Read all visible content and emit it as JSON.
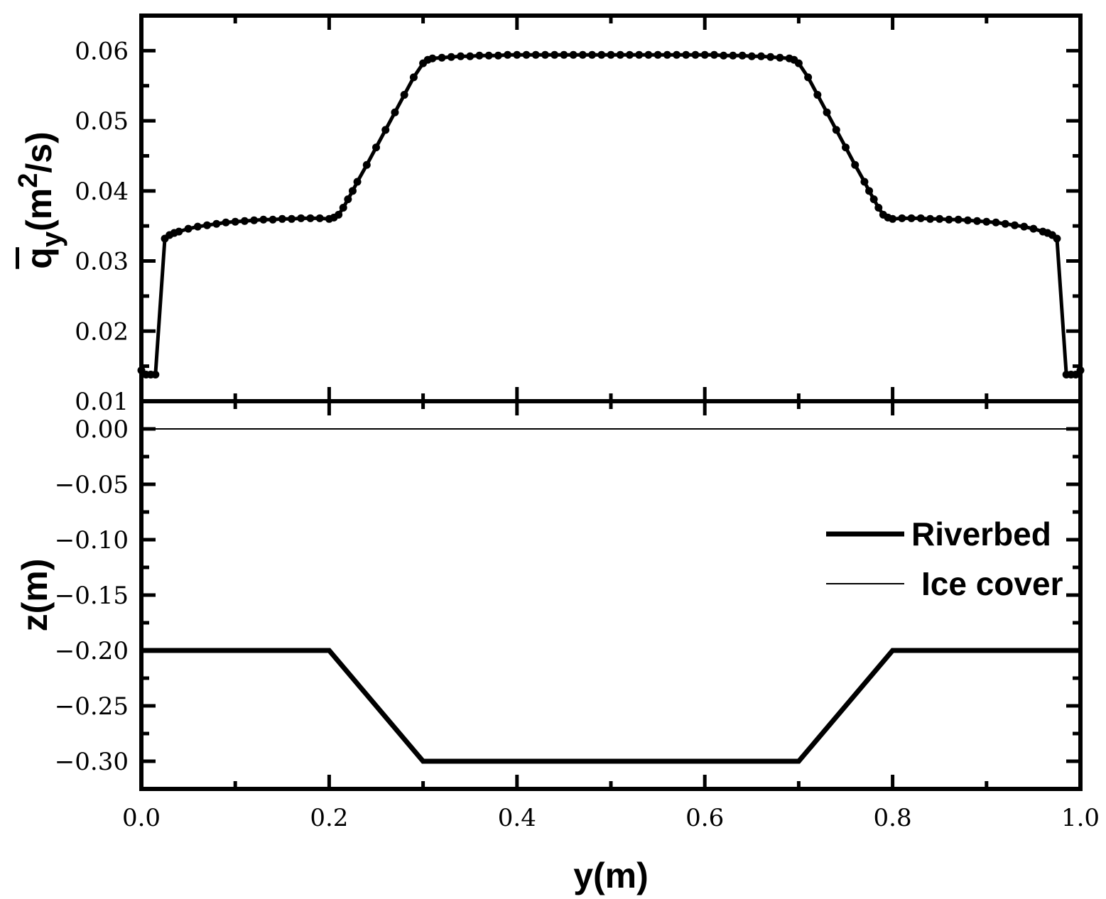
{
  "chart_data": [
    {
      "type": "line",
      "panel": "top",
      "ylabel": "q̄y(m²/s)",
      "ylabel_parts": {
        "base": "q",
        "subscript": "y",
        "unit_open": "(m",
        "superscript": "2",
        "unit_close": "/s)"
      },
      "ylim": [
        0.01,
        0.065
      ],
      "yticks": [
        0.01,
        0.02,
        0.03,
        0.04,
        0.05,
        0.06
      ],
      "ytick_labels": [
        "0.01",
        "0.02",
        "0.03",
        "0.04",
        "0.05",
        "0.06"
      ],
      "xlim": [
        0.0,
        1.0
      ],
      "markers": true,
      "series": [
        {
          "name": "",
          "x": [
            0.0,
            0.005,
            0.01,
            0.015,
            0.025,
            0.03,
            0.035,
            0.04,
            0.05,
            0.06,
            0.07,
            0.08,
            0.09,
            0.1,
            0.11,
            0.12,
            0.13,
            0.14,
            0.15,
            0.16,
            0.17,
            0.18,
            0.19,
            0.2,
            0.205,
            0.21,
            0.215,
            0.22,
            0.225,
            0.23,
            0.24,
            0.25,
            0.26,
            0.27,
            0.28,
            0.29,
            0.3,
            0.305,
            0.31,
            0.32,
            0.33,
            0.34,
            0.35,
            0.36,
            0.37,
            0.38,
            0.39,
            0.4,
            0.41,
            0.42,
            0.43,
            0.44,
            0.45,
            0.46,
            0.47,
            0.48,
            0.49,
            0.5,
            0.51,
            0.52,
            0.53,
            0.54,
            0.55,
            0.56,
            0.57,
            0.58,
            0.59,
            0.6,
            0.61,
            0.62,
            0.63,
            0.64,
            0.65,
            0.66,
            0.67,
            0.68,
            0.69,
            0.695,
            0.7,
            0.71,
            0.72,
            0.73,
            0.74,
            0.75,
            0.76,
            0.77,
            0.775,
            0.78,
            0.785,
            0.79,
            0.795,
            0.8,
            0.81,
            0.82,
            0.83,
            0.84,
            0.85,
            0.86,
            0.87,
            0.88,
            0.89,
            0.9,
            0.91,
            0.92,
            0.93,
            0.94,
            0.95,
            0.96,
            0.965,
            0.97,
            0.975,
            0.985,
            0.99,
            0.995,
            1.0
          ],
          "values": [
            0.0144,
            0.0138,
            0.0138,
            0.0138,
            0.0332,
            0.0337,
            0.034,
            0.0342,
            0.0346,
            0.0349,
            0.0351,
            0.0353,
            0.0355,
            0.0356,
            0.0357,
            0.0358,
            0.0359,
            0.0359,
            0.036,
            0.036,
            0.0361,
            0.0361,
            0.0361,
            0.036,
            0.0362,
            0.0366,
            0.0376,
            0.0388,
            0.04,
            0.0413,
            0.0437,
            0.0462,
            0.0487,
            0.0512,
            0.0537,
            0.0562,
            0.0582,
            0.0587,
            0.0589,
            0.059,
            0.0591,
            0.0592,
            0.0592,
            0.0593,
            0.0593,
            0.0593,
            0.0594,
            0.0594,
            0.0594,
            0.0594,
            0.0594,
            0.0594,
            0.0594,
            0.0594,
            0.0594,
            0.0594,
            0.0594,
            0.0594,
            0.0594,
            0.0594,
            0.0594,
            0.0594,
            0.0594,
            0.0594,
            0.0594,
            0.0594,
            0.0594,
            0.0594,
            0.0594,
            0.0593,
            0.0593,
            0.0593,
            0.0592,
            0.0592,
            0.0591,
            0.059,
            0.0589,
            0.0587,
            0.0582,
            0.0562,
            0.0537,
            0.0512,
            0.0487,
            0.0462,
            0.0437,
            0.0413,
            0.04,
            0.0388,
            0.0376,
            0.0366,
            0.0362,
            0.036,
            0.0361,
            0.0361,
            0.0361,
            0.036,
            0.036,
            0.0359,
            0.0359,
            0.0358,
            0.0357,
            0.0356,
            0.0355,
            0.0353,
            0.0351,
            0.0349,
            0.0346,
            0.0342,
            0.034,
            0.0337,
            0.0332,
            0.0138,
            0.0138,
            0.0138,
            0.0144
          ]
        }
      ]
    },
    {
      "type": "line",
      "panel": "bottom",
      "xlabel": "y(m)",
      "ylabel": "z(m)",
      "xlim": [
        0.0,
        1.0
      ],
      "ylim": [
        -0.325,
        0.025
      ],
      "xticks": [
        0.0,
        0.2,
        0.4,
        0.6,
        0.8,
        1.0
      ],
      "xtick_labels": [
        "0.0",
        "0.2",
        "0.4",
        "0.6",
        "0.8",
        "1.0"
      ],
      "yticks": [
        0.0,
        -0.05,
        -0.1,
        -0.15,
        -0.2,
        -0.25,
        -0.3
      ],
      "ytick_labels": [
        "0.00",
        "−0.05",
        "−0.10",
        "−0.15",
        "−0.20",
        "−0.25",
        "−0.30"
      ],
      "legend_position": "right",
      "series": [
        {
          "name": "Riverbed",
          "style": "thick",
          "x": [
            0.0,
            0.2,
            0.3,
            0.7,
            0.8,
            1.0
          ],
          "values": [
            -0.2,
            -0.2,
            -0.3,
            -0.3,
            -0.2,
            -0.2
          ]
        },
        {
          "name": "Ice cover",
          "style": "thin",
          "x": [
            0.0,
            1.0
          ],
          "values": [
            0.0,
            0.0
          ]
        }
      ]
    }
  ]
}
